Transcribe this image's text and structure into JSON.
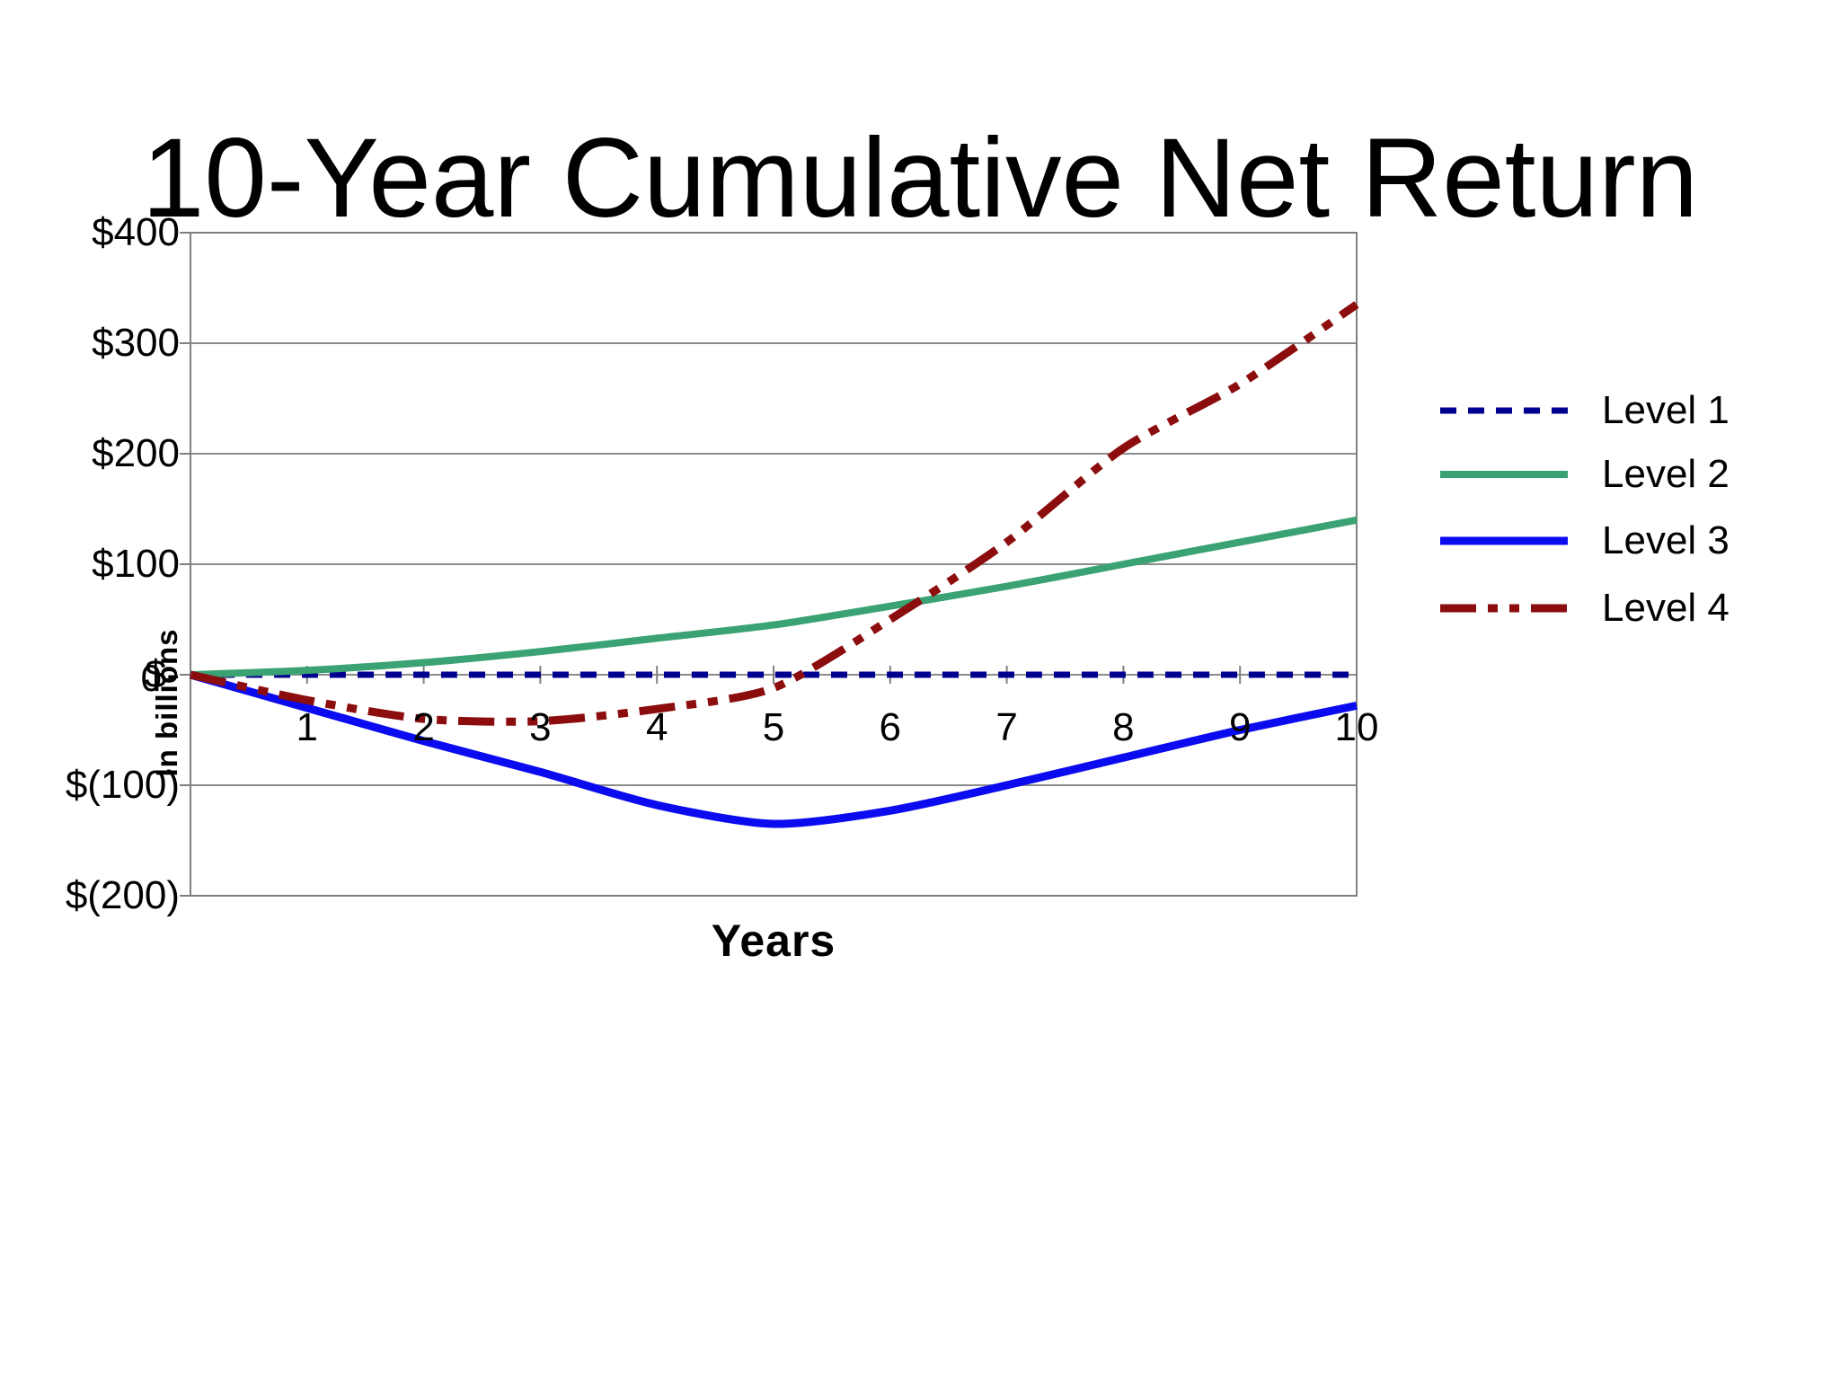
{
  "title": "10-Year Cumulative Net Return",
  "chart_data": {
    "type": "line",
    "title": "10-Year Cumulative Net Return",
    "xlabel": "Years",
    "ylabel": "In billions",
    "xlim": [
      0,
      10
    ],
    "ylim": [
      -200,
      400
    ],
    "grid": "horizontal",
    "legend_position": "right",
    "x": [
      0,
      1,
      2,
      3,
      4,
      5,
      6,
      7,
      8,
      9,
      10
    ],
    "x_tick_labels": [
      "1",
      "2",
      "3",
      "4",
      "5",
      "6",
      "7",
      "8",
      "9",
      "10"
    ],
    "origin_label": "0",
    "y_ticks": [
      {
        "value": 400,
        "label": "$400"
      },
      {
        "value": 300,
        "label": "$300"
      },
      {
        "value": 200,
        "label": "$200"
      },
      {
        "value": 100,
        "label": "$100"
      },
      {
        "value": 0,
        "label": "$-"
      },
      {
        "value": -100,
        "label": "$(100)"
      },
      {
        "value": -200,
        "label": "$(200)"
      }
    ],
    "series": [
      {
        "name": "Level 1",
        "color": "#000090",
        "line_style": "dashed",
        "width": 7,
        "values": [
          0,
          0,
          0,
          0,
          0,
          0,
          0,
          0,
          0,
          0,
          0
        ]
      },
      {
        "name": "Level 2",
        "color": "#3BA273",
        "line_style": "solid",
        "width": 8,
        "values": [
          0,
          4,
          11,
          21,
          33,
          45,
          62,
          80,
          100,
          120,
          140
        ]
      },
      {
        "name": "Level 3",
        "color": "#0B0BF0",
        "line_style": "solid",
        "width": 9,
        "values": [
          0,
          -30,
          -60,
          -88,
          -118,
          -135,
          -123,
          -100,
          -75,
          -50,
          -28
        ]
      },
      {
        "name": "Level 4",
        "color": "#8B0D0D",
        "line_style": "dash-dot-dot",
        "width": 9,
        "values": [
          0,
          -23,
          -40,
          -42,
          -31,
          -12,
          50,
          120,
          205,
          263,
          335
        ]
      }
    ]
  },
  "colors": {
    "background": "#ffffff",
    "gridline": "#8C8C8C",
    "axis": "#808080",
    "text": "#000000"
  }
}
